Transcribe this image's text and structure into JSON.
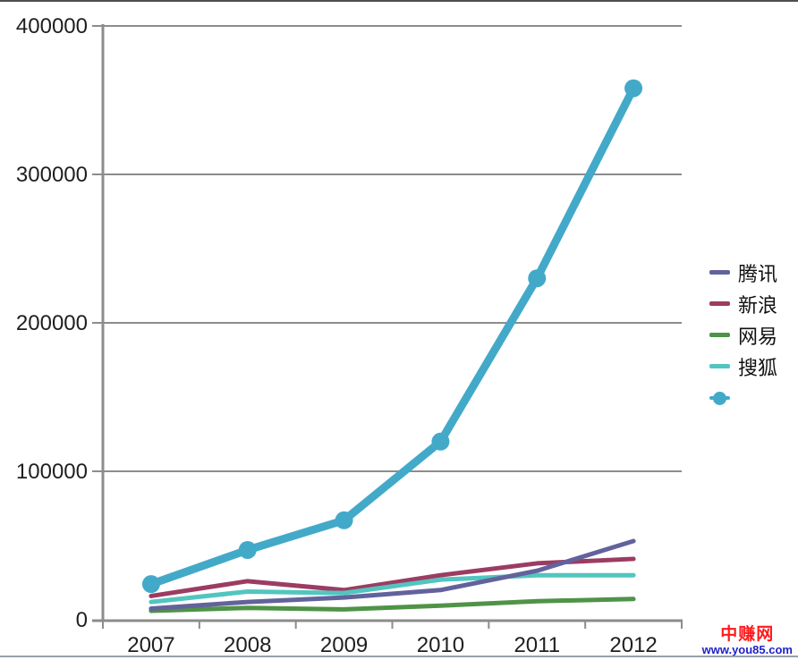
{
  "chart_data": {
    "type": "line",
    "x": [
      "2007",
      "2008",
      "2009",
      "2010",
      "2011",
      "2012"
    ],
    "series": [
      {
        "name": "腾讯",
        "color": "#62629C",
        "width": 5,
        "marker": false,
        "values": [
          7500,
          12000,
          15000,
          20000,
          33000,
          53000
        ]
      },
      {
        "name": "新浪",
        "color": "#9C3C62",
        "width": 5,
        "marker": false,
        "values": [
          16000,
          26000,
          20000,
          30000,
          38000,
          41000
        ]
      },
      {
        "name": "网易",
        "color": "#4F9347",
        "width": 5,
        "marker": false,
        "values": [
          6000,
          8000,
          7000,
          9500,
          12500,
          14000
        ]
      },
      {
        "name": "搜狐",
        "color": "#52C5C0",
        "width": 5,
        "marker": false,
        "values": [
          12000,
          19000,
          18000,
          27000,
          30000,
          30000
        ]
      },
      {
        "name": "",
        "color": "#43A9C9",
        "width": 9,
        "marker": true,
        "values": [
          24000,
          47000,
          67000,
          120000,
          230000,
          358000
        ]
      }
    ],
    "ylim": [
      0,
      400000
    ],
    "yticks": [
      0,
      100000,
      200000,
      300000,
      400000
    ],
    "ytick_labels": [
      "0",
      "100000",
      "200000",
      "300000",
      "400000"
    ],
    "grid": true,
    "legend_position": "right",
    "axis_color": "#8C8C8C",
    "text_color": "#1F1F1F"
  },
  "watermark": {
    "title": "中赚网",
    "title_color": "#FF1A1A",
    "url": "www.you85.com",
    "url_color": "#2021C8"
  }
}
